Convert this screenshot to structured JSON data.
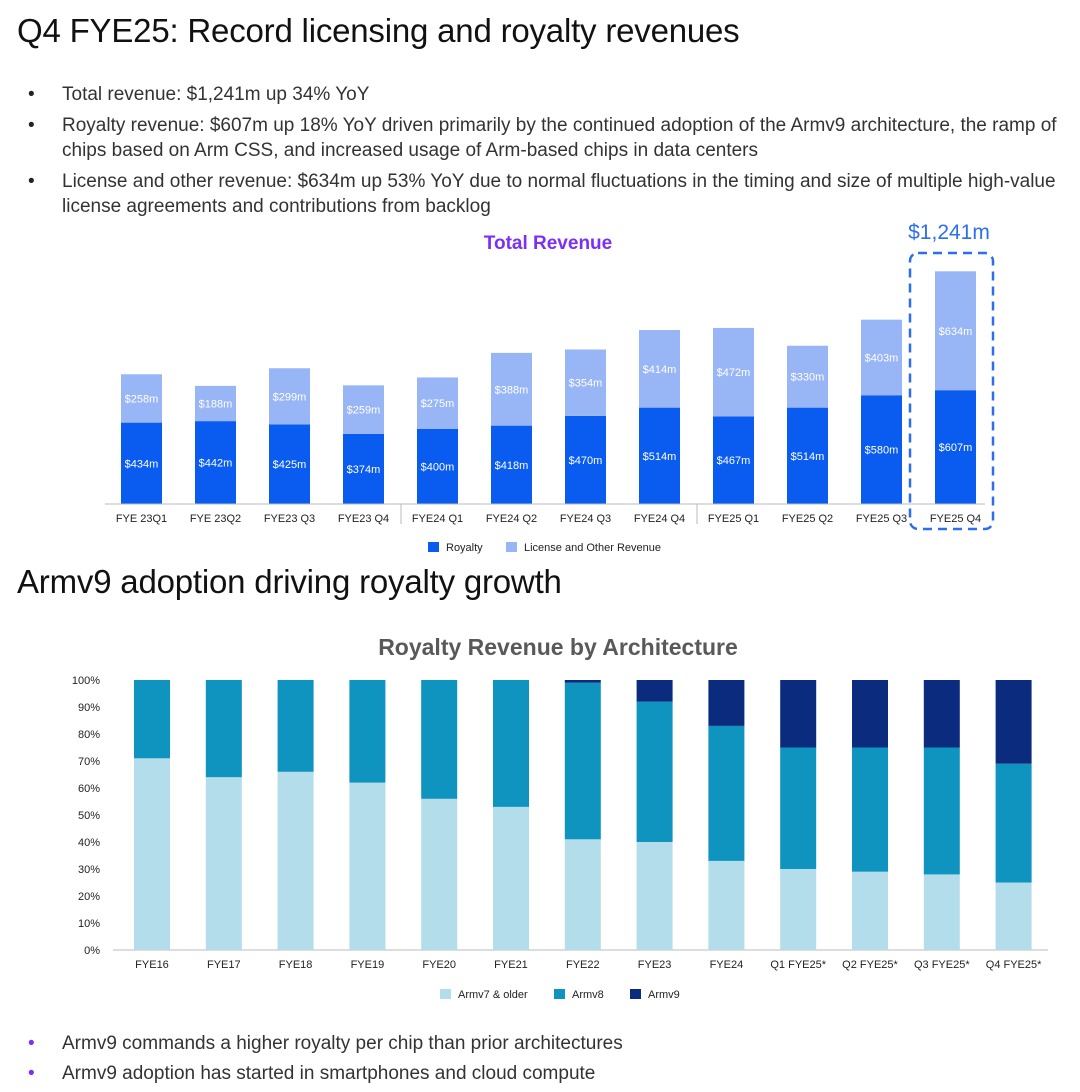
{
  "slide": {
    "title1": "Q4 FYE25: Record licensing and royalty revenues",
    "bullets_top": [
      "Total revenue: $1,241m up 34% YoY",
      "Royalty revenue: $607m up 18% YoY driven primarily by the continued adoption of the Armv9 architecture, the ramp of chips based on Arm CSS, and increased usage of Arm-based chips in data centers",
      "License and other revenue: $634m up 53% YoY due to normal fluctuations in the timing and size of multiple high-value license agreements and contributions from backlog"
    ],
    "title2": "Armv9 adoption driving royalty growth",
    "bullets_bottom": [
      "Armv9 commands a higher royalty per chip than prior architectures",
      "Armv9 adoption has started in smartphones and cloud compute"
    ]
  },
  "colors": {
    "royalty": "#0a5cf0",
    "license": "#98b6f5",
    "title_purple": "#7b2ff7",
    "highlight": "#2b6ff0",
    "armv7": "#b3ddea",
    "armv8": "#0f93bf",
    "armv9": "#0b2b7e"
  },
  "chart_data": [
    {
      "type": "bar",
      "stacked": true,
      "title": "Total Revenue",
      "categories": [
        "FYE 23Q1",
        "FYE 23Q2",
        "FYE23 Q3",
        "FYE23 Q4",
        "FYE24 Q1",
        "FYE24 Q2",
        "FYE24 Q3",
        "FYE24 Q4",
        "FYE25 Q1",
        "FYE25 Q2",
        "FYE25 Q3",
        "FYE25 Q4"
      ],
      "series": [
        {
          "name": "Royalty",
          "values": [
            434,
            442,
            425,
            374,
            400,
            418,
            470,
            514,
            467,
            514,
            580,
            607
          ],
          "labels": [
            "$434m",
            "$442m",
            "$425m",
            "$374m",
            "$400m",
            "$418m",
            "$470m",
            "$514m",
            "$467m",
            "$514m",
            "$580m",
            "$607m"
          ]
        },
        {
          "name": "License and Other Revenue",
          "values": [
            258,
            188,
            299,
            259,
            275,
            388,
            354,
            414,
            472,
            330,
            403,
            634
          ],
          "labels": [
            "$258m",
            "$188m",
            "$299m",
            "$259m",
            "$275m",
            "$388m",
            "$354m",
            "$414m",
            "$472m",
            "$330m",
            "$403m",
            "$634m"
          ]
        }
      ],
      "annotation": "$1,241m",
      "highlight_category": "FYE25 Q4",
      "legend_position": "bottom"
    },
    {
      "type": "bar",
      "stacked": true,
      "percent": true,
      "title": "Royalty Revenue by Architecture",
      "categories": [
        "FYE16",
        "FYE17",
        "FYE18",
        "FYE19",
        "FYE20",
        "FYE21",
        "FYE22",
        "FYE23",
        "FYE24",
        "Q1 FYE25*",
        "Q2 FYE25*",
        "Q3 FYE25*",
        "Q4 FYE25*"
      ],
      "series": [
        {
          "name": "Armv7 & older",
          "values": [
            71,
            64,
            66,
            62,
            56,
            53,
            41,
            40,
            33,
            30,
            29,
            28,
            25
          ]
        },
        {
          "name": "Armv8",
          "values": [
            29,
            36,
            34,
            38,
            44,
            47,
            58,
            52,
            50,
            45,
            46,
            47,
            44
          ]
        },
        {
          "name": "Armv9",
          "values": [
            0,
            0,
            0,
            0,
            0,
            0,
            1,
            8,
            17,
            25,
            25,
            25,
            31
          ]
        }
      ],
      "yticks": [
        "0%",
        "10%",
        "20%",
        "30%",
        "40%",
        "50%",
        "60%",
        "70%",
        "80%",
        "90%",
        "100%"
      ],
      "ylim": [
        0,
        100
      ],
      "legend_position": "bottom"
    }
  ]
}
